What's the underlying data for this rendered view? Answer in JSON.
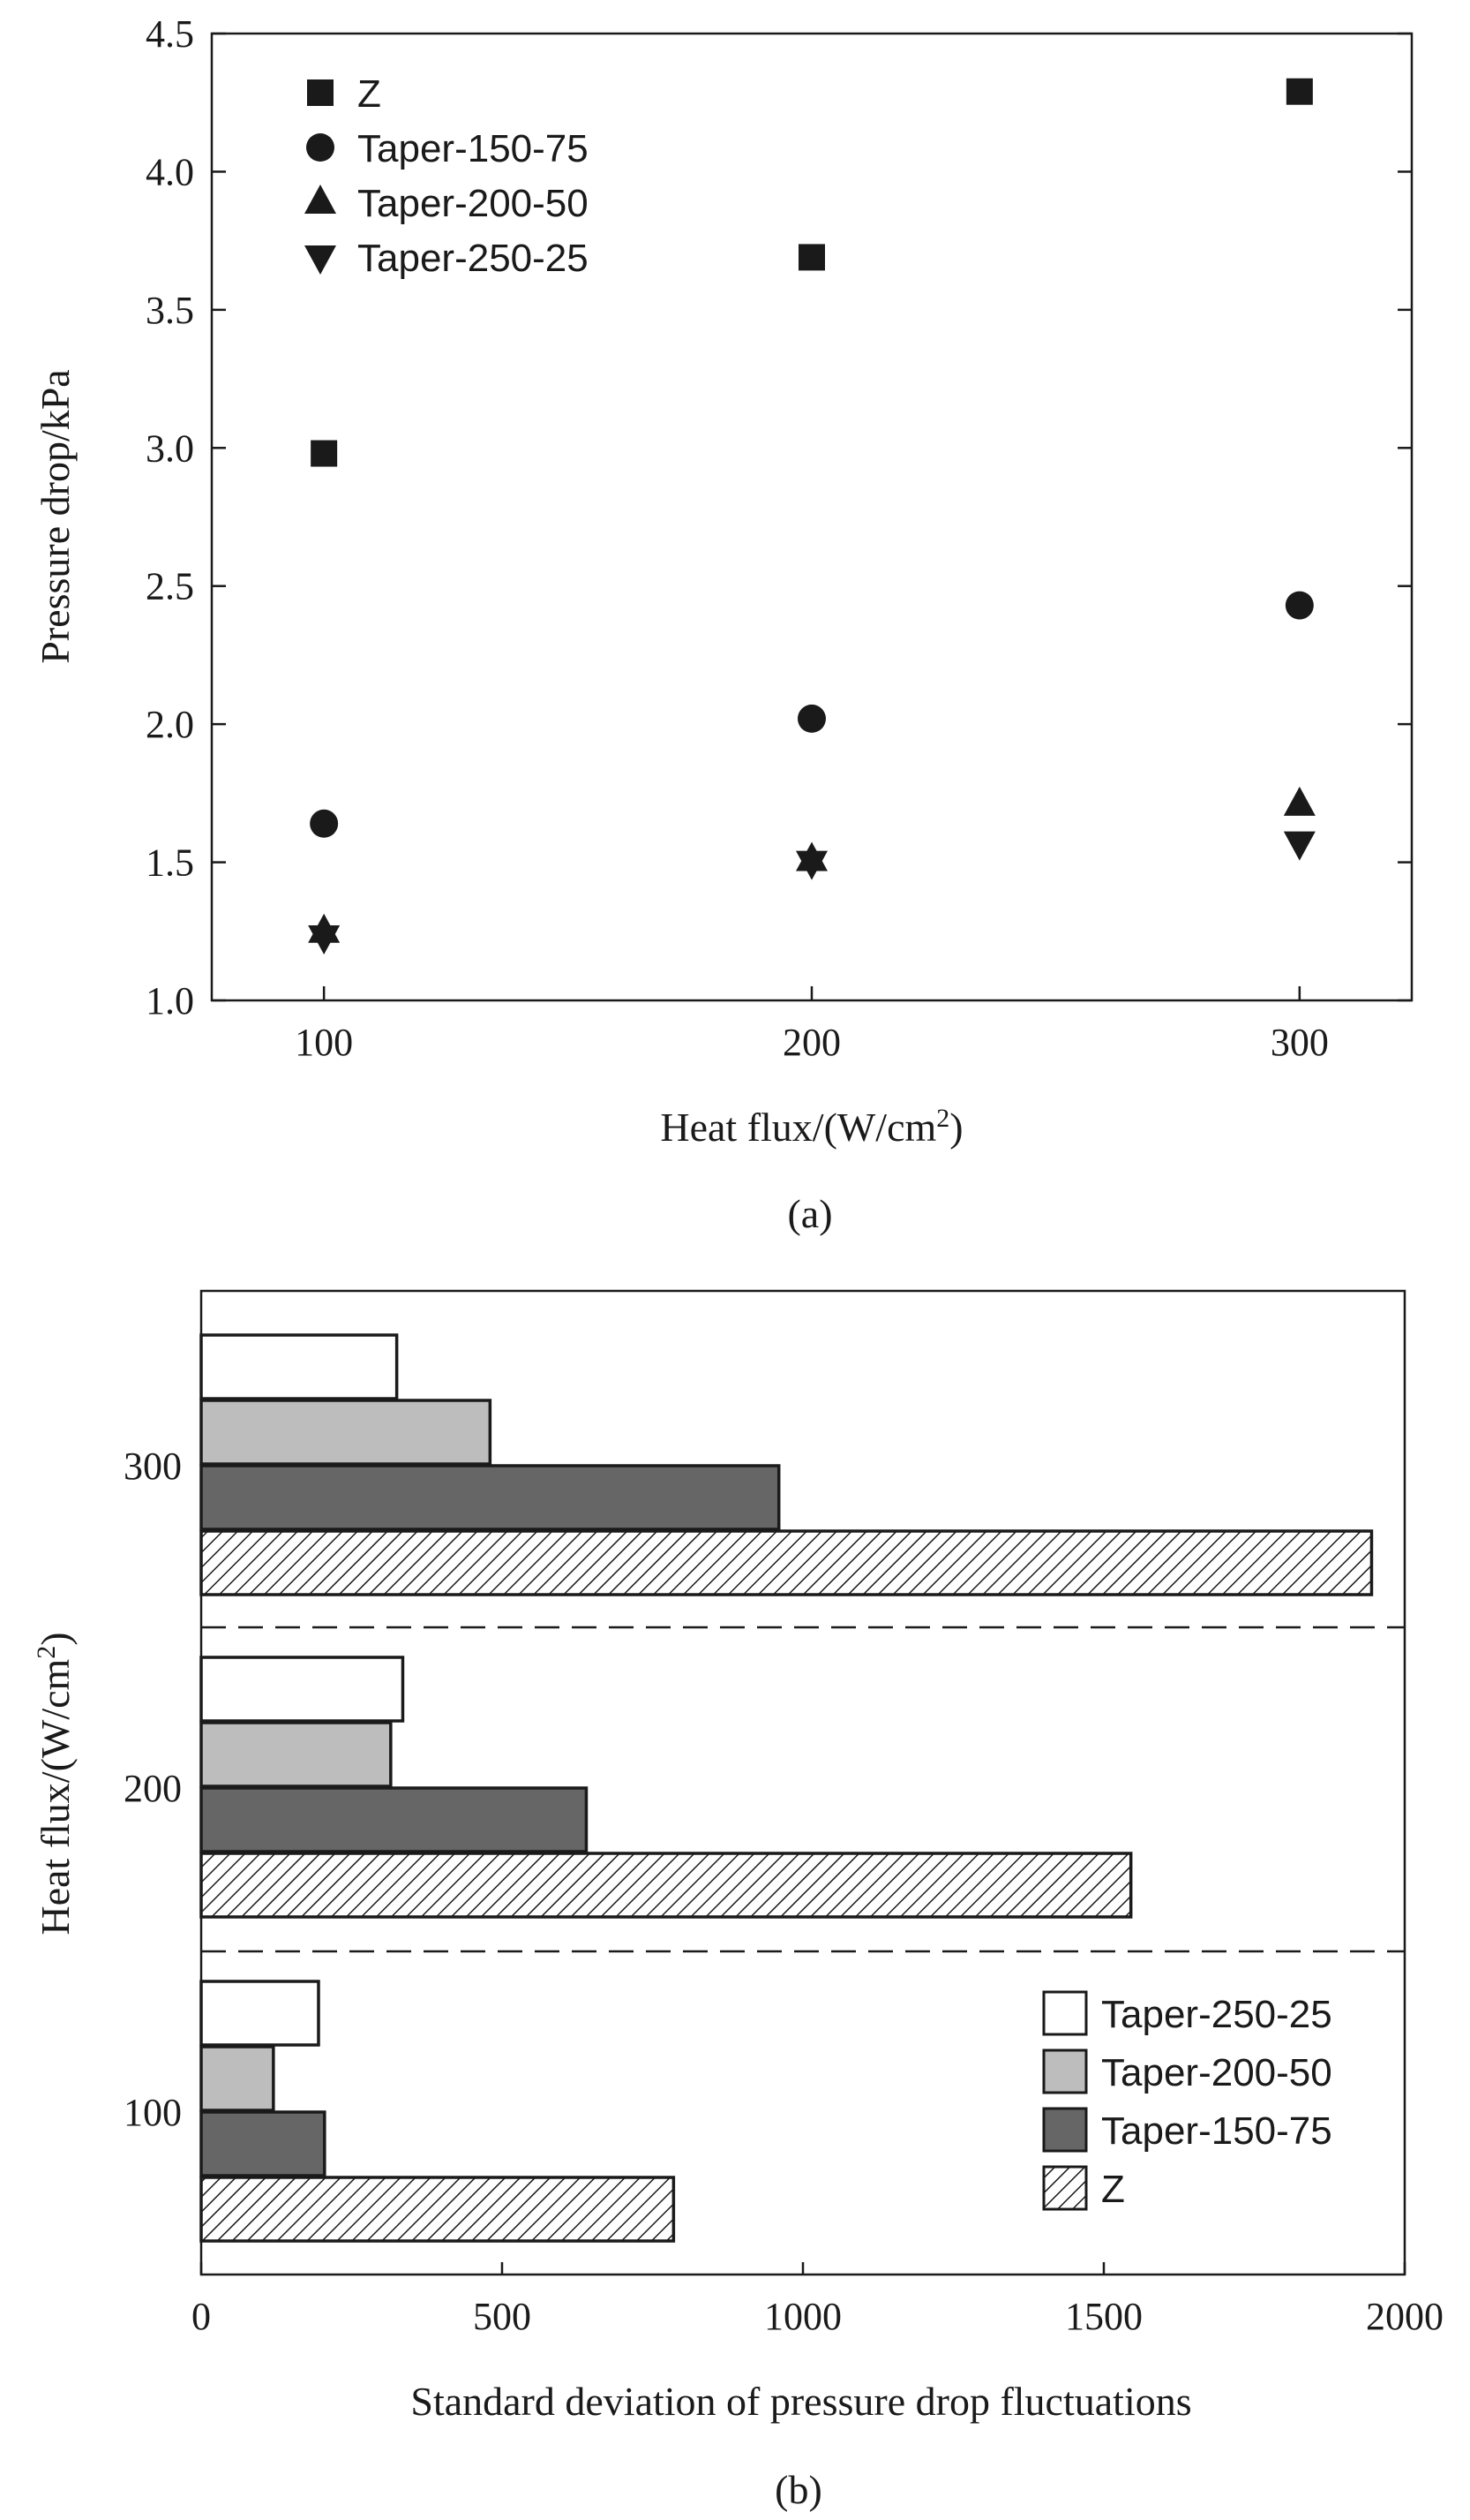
{
  "colors": {
    "ink": "#1a1a1a",
    "taper_250_25_fill": "#ffffff",
    "taper_200_50_fill": "#bdbdbd",
    "taper_150_75_fill": "#666666",
    "z_fill": "hatched"
  },
  "chart_data": [
    {
      "id": "a",
      "type": "scatter",
      "panel_label": "(a)",
      "xlabel": "Heat flux/(W/cm",
      "xlabel_sup": "2",
      "xlabel_close": ")",
      "ylabel": "Pressure drop/kPa",
      "x_ticks": [
        "100",
        "200",
        "300"
      ],
      "y_ticks": [
        "1.0",
        "1.5",
        "2.0",
        "2.5",
        "3.0",
        "3.5",
        "4.0",
        "4.5"
      ],
      "xlim": [
        77,
        323
      ],
      "ylim": [
        1.0,
        4.5
      ],
      "legend_position": "top-left",
      "series": [
        {
          "name": "Z",
          "marker": "square",
          "x": [
            100,
            200,
            300
          ],
          "y": [
            2.98,
            3.69,
            4.29
          ]
        },
        {
          "name": "Taper-150-75",
          "marker": "circle",
          "x": [
            100,
            200,
            300
          ],
          "y": [
            1.64,
            2.02,
            2.43
          ]
        },
        {
          "name": "Taper-200-50",
          "marker": "triangle-up",
          "x": [
            100,
            200,
            300
          ],
          "y": [
            1.25,
            1.51,
            1.71
          ]
        },
        {
          "name": "Taper-250-25",
          "marker": "triangle-down",
          "x": [
            100,
            200,
            300
          ],
          "y": [
            1.23,
            1.5,
            1.57
          ]
        }
      ]
    },
    {
      "id": "b",
      "type": "bar",
      "orientation": "horizontal",
      "panel_label": "(b)",
      "xlabel": "Standard deviation of pressure drop fluctuations",
      "ylabel": "Heat flux/(W/cm",
      "ylabel_sup": "2",
      "ylabel_close": ")",
      "categories": [
        "100",
        "200",
        "300"
      ],
      "x_ticks": [
        "0",
        "500",
        "1000",
        "1500",
        "2000"
      ],
      "xlim": [
        0,
        2000
      ],
      "group_separators": "dashed",
      "legend_position": "bottom-right",
      "series": [
        {
          "name": "Taper-250-25",
          "fill": "white",
          "values": [
            195,
            335,
            325
          ]
        },
        {
          "name": "Taper-200-50",
          "fill": "light-gray",
          "values": [
            120,
            315,
            480
          ]
        },
        {
          "name": "Taper-150-75",
          "fill": "dark-gray",
          "values": [
            205,
            640,
            960
          ]
        },
        {
          "name": "Z",
          "fill": "hatched",
          "values": [
            785,
            1545,
            1945
          ]
        }
      ]
    }
  ]
}
